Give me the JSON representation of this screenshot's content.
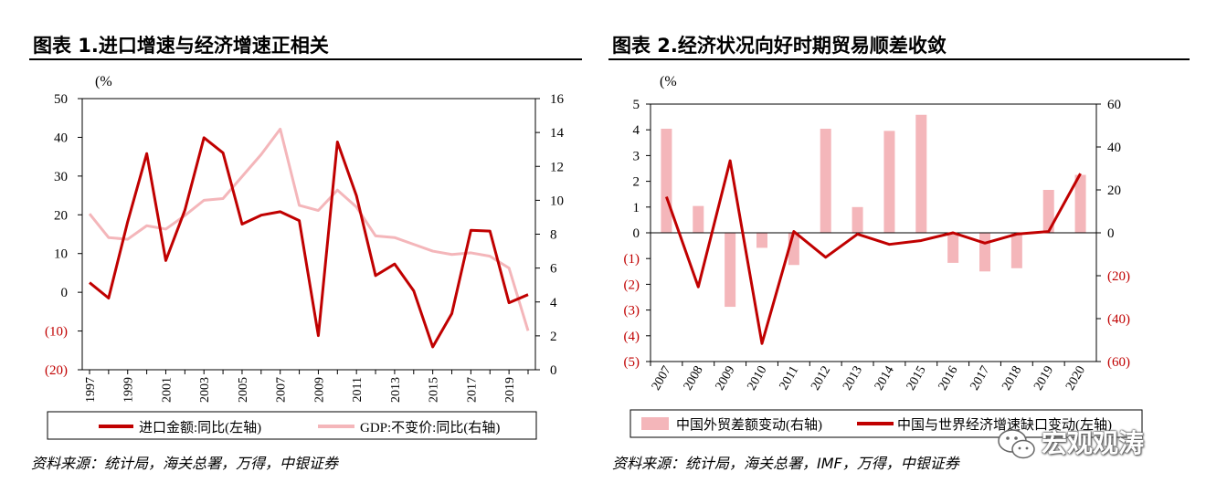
{
  "figures": [
    {
      "title": "图表 1.进口增速与经济增速正相关",
      "source": "资料来源：统计局，海关总署，万得，中银证券"
    },
    {
      "title": "图表 2.经济状况向好时期贸易顺差收敛",
      "source": "资料来源：统计局，海关总署，IMF，万得，中银证券"
    }
  ],
  "watermark": {
    "text": "宏观观涛",
    "icon": "wechat-icon"
  },
  "colors": {
    "dark_red": "#C00000",
    "pink": "#F4B6BA",
    "neg_tick": "#C00000"
  },
  "chart_data": [
    {
      "type": "line",
      "unit_label": "(%",
      "x": [
        "1997",
        "1998",
        "1999",
        "2000",
        "2001",
        "2002",
        "2003",
        "2004",
        "2005",
        "2006",
        "2007",
        "2008",
        "2009",
        "2010",
        "2011",
        "2012",
        "2013",
        "2014",
        "2015",
        "2016",
        "2017",
        "2018",
        "2019",
        "2020"
      ],
      "x_tick_labels": [
        "1997",
        "1999",
        "2001",
        "2003",
        "2005",
        "2007",
        "2009",
        "2011",
        "2013",
        "2015",
        "2017",
        "2019"
      ],
      "left_ticks": [
        "50",
        "40",
        "30",
        "20",
        "10",
        "0",
        "(10)",
        "(20)"
      ],
      "right_ticks": [
        "16",
        "14",
        "12",
        "10",
        "8",
        "6",
        "4",
        "2",
        "0"
      ],
      "ylim_left": [
        -20,
        50
      ],
      "ylim_right": [
        0,
        16
      ],
      "series": [
        {
          "name": "进口金额:同比(左轴)",
          "axis": "left",
          "color": "#C00000",
          "values": [
            2.5,
            -1.5,
            18.2,
            35.8,
            8.2,
            21.2,
            39.9,
            36.0,
            17.6,
            19.9,
            20.8,
            18.5,
            -11.2,
            38.8,
            24.9,
            4.3,
            7.3,
            0.4,
            -14.1,
            -5.5,
            16.0,
            15.8,
            -2.7,
            -0.6
          ]
        },
        {
          "name": "GDP:不变价:同比(右轴)",
          "axis": "right",
          "color": "#F4B6BA",
          "values": [
            9.2,
            7.8,
            7.7,
            8.5,
            8.3,
            9.1,
            10.0,
            10.1,
            11.4,
            12.7,
            14.2,
            9.7,
            9.4,
            10.6,
            9.6,
            7.9,
            7.8,
            7.4,
            7.0,
            6.8,
            6.9,
            6.7,
            6.0,
            2.3
          ]
        }
      ]
    },
    {
      "type": "bar+line",
      "unit_label": "(%",
      "x": [
        "2007",
        "2008",
        "2009",
        "2010",
        "2011",
        "2012",
        "2013",
        "2014",
        "2015",
        "2016",
        "2017",
        "2018",
        "2019",
        "2020"
      ],
      "left_ticks": [
        "5",
        "4",
        "3",
        "2",
        "1",
        "0",
        "(1)",
        "(2)",
        "(3)",
        "(4)",
        "(5)"
      ],
      "right_ticks": [
        "60",
        "40",
        "20",
        "0",
        "(20)",
        "(40)",
        "(60)"
      ],
      "ylim_left": [
        -5,
        5
      ],
      "ylim_right": [
        -60,
        60
      ],
      "series": [
        {
          "name": "中国外贸差额变动(右轴)",
          "type": "bar",
          "axis": "right",
          "color": "#F4B6BA",
          "values": [
            48.5,
            12.5,
            -34.5,
            -7.0,
            -15.0,
            48.5,
            12.0,
            47.5,
            55.0,
            -14.0,
            -18.0,
            -16.5,
            20.0,
            27.0
          ]
        },
        {
          "name": "中国与世界经济增速缺口变动(左轴)",
          "type": "line",
          "axis": "left",
          "color": "#C00000",
          "values": [
            1.4,
            -2.1,
            2.8,
            -4.3,
            0.05,
            -0.95,
            -0.05,
            -0.45,
            -0.3,
            0.0,
            -0.4,
            -0.05,
            0.05,
            2.3
          ]
        }
      ]
    }
  ]
}
